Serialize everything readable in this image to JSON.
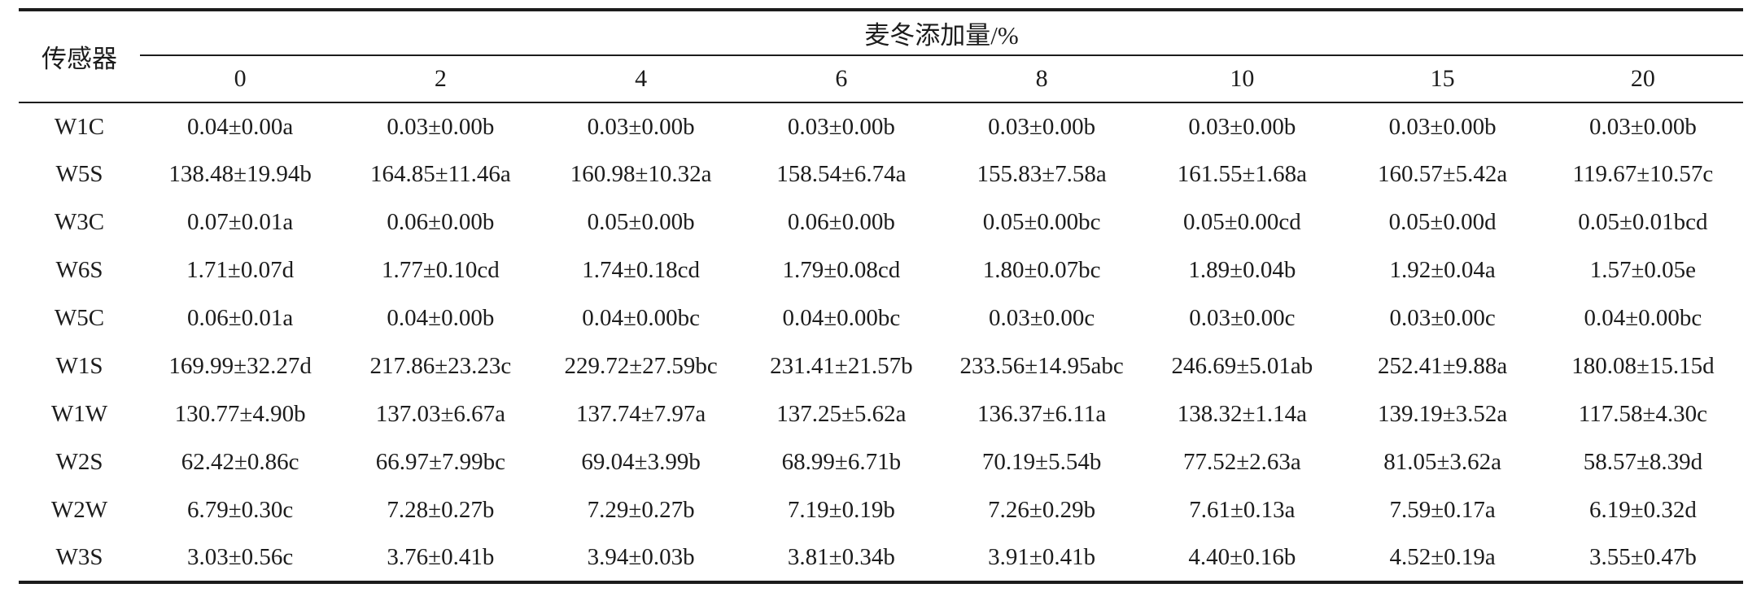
{
  "table": {
    "corner_header": "传感器",
    "span_header": "麦冬添加量/%",
    "columns": [
      "0",
      "2",
      "4",
      "6",
      "8",
      "10",
      "15",
      "20"
    ],
    "rows": [
      {
        "sensor": "W1C",
        "values": [
          "0.04±0.00a",
          "0.03±0.00b",
          "0.03±0.00b",
          "0.03±0.00b",
          "0.03±0.00b",
          "0.03±0.00b",
          "0.03±0.00b",
          "0.03±0.00b"
        ]
      },
      {
        "sensor": "W5S",
        "values": [
          "138.48±19.94b",
          "164.85±11.46a",
          "160.98±10.32a",
          "158.54±6.74a",
          "155.83±7.58a",
          "161.55±1.68a",
          "160.57±5.42a",
          "119.67±10.57c"
        ]
      },
      {
        "sensor": "W3C",
        "values": [
          "0.07±0.01a",
          "0.06±0.00b",
          "0.05±0.00b",
          "0.06±0.00b",
          "0.05±0.00bc",
          "0.05±0.00cd",
          "0.05±0.00d",
          "0.05±0.01bcd"
        ]
      },
      {
        "sensor": "W6S",
        "values": [
          "1.71±0.07d",
          "1.77±0.10cd",
          "1.74±0.18cd",
          "1.79±0.08cd",
          "1.80±0.07bc",
          "1.89±0.04b",
          "1.92±0.04a",
          "1.57±0.05e"
        ]
      },
      {
        "sensor": "W5C",
        "values": [
          "0.06±0.01a",
          "0.04±0.00b",
          "0.04±0.00bc",
          "0.04±0.00bc",
          "0.03±0.00c",
          "0.03±0.00c",
          "0.03±0.00c",
          "0.04±0.00bc"
        ]
      },
      {
        "sensor": "W1S",
        "values": [
          "169.99±32.27d",
          "217.86±23.23c",
          "229.72±27.59bc",
          "231.41±21.57b",
          "233.56±14.95abc",
          "246.69±5.01ab",
          "252.41±9.88a",
          "180.08±15.15d"
        ]
      },
      {
        "sensor": "W1W",
        "values": [
          "130.77±4.90b",
          "137.03±6.67a",
          "137.74±7.97a",
          "137.25±5.62a",
          "136.37±6.11a",
          "138.32±1.14a",
          "139.19±3.52a",
          "117.58±4.30c"
        ]
      },
      {
        "sensor": "W2S",
        "values": [
          "62.42±0.86c",
          "66.97±7.99bc",
          "69.04±3.99b",
          "68.99±6.71b",
          "70.19±5.54b",
          "77.52±2.63a",
          "81.05±3.62a",
          "58.57±8.39d"
        ]
      },
      {
        "sensor": "W2W",
        "values": [
          "6.79±0.30c",
          "7.28±0.27b",
          "7.29±0.27b",
          "7.19±0.19b",
          "7.26±0.29b",
          "7.61±0.13a",
          "7.59±0.17a",
          "6.19±0.32d"
        ]
      },
      {
        "sensor": "W3S",
        "values": [
          "3.03±0.56c",
          "3.76±0.41b",
          "3.94±0.03b",
          "3.81±0.34b",
          "3.91±0.41b",
          "4.40±0.16b",
          "4.52±0.19a",
          "3.55±0.47b"
        ]
      }
    ]
  },
  "chart_data": {
    "type": "table",
    "title": "",
    "row_header": "传感器",
    "column_group_header": "麦冬添加量/%",
    "columns": [
      "0",
      "2",
      "4",
      "6",
      "8",
      "10",
      "15",
      "20"
    ],
    "row_labels": [
      "W1C",
      "W5S",
      "W3C",
      "W6S",
      "W5C",
      "W1S",
      "W1W",
      "W2S",
      "W2W",
      "W3S"
    ],
    "series": [
      {
        "name": "W1C",
        "values": [
          0.04,
          0.03,
          0.03,
          0.03,
          0.03,
          0.03,
          0.03,
          0.03
        ]
      },
      {
        "name": "W5S",
        "values": [
          138.48,
          164.85,
          160.98,
          158.54,
          155.83,
          161.55,
          160.57,
          119.67
        ]
      },
      {
        "name": "W3C",
        "values": [
          0.07,
          0.06,
          0.05,
          0.06,
          0.05,
          0.05,
          0.05,
          0.05
        ]
      },
      {
        "name": "W6S",
        "values": [
          1.71,
          1.77,
          1.74,
          1.79,
          1.8,
          1.89,
          1.92,
          1.57
        ]
      },
      {
        "name": "W5C",
        "values": [
          0.06,
          0.04,
          0.04,
          0.04,
          0.03,
          0.03,
          0.03,
          0.04
        ]
      },
      {
        "name": "W1S",
        "values": [
          169.99,
          217.86,
          229.72,
          231.41,
          233.56,
          246.69,
          252.41,
          180.08
        ]
      },
      {
        "name": "W1W",
        "values": [
          130.77,
          137.03,
          137.74,
          137.25,
          136.37,
          138.32,
          139.19,
          117.58
        ]
      },
      {
        "name": "W2S",
        "values": [
          62.42,
          66.97,
          69.04,
          68.99,
          70.19,
          77.52,
          81.05,
          58.57
        ]
      },
      {
        "name": "W2W",
        "values": [
          6.79,
          7.28,
          7.29,
          7.19,
          7.26,
          7.61,
          7.59,
          6.19
        ]
      },
      {
        "name": "W3S",
        "values": [
          3.03,
          3.76,
          3.94,
          3.81,
          3.91,
          4.4,
          4.52,
          3.55
        ]
      }
    ]
  },
  "colors": {
    "text": "#1c1c1c",
    "rule": "#1c1c1c",
    "background": "#ffffff"
  }
}
